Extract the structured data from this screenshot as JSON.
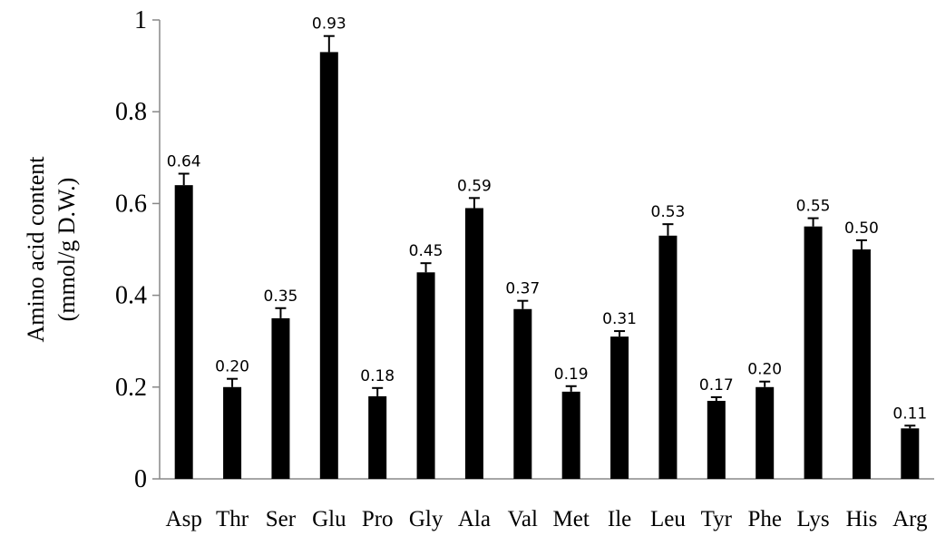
{
  "chart_data": {
    "type": "bar",
    "title": "",
    "xlabel": "",
    "ylabel_line1": "Amino acid content",
    "ylabel_line2": "(mmol/g D.W.)",
    "ylim": [
      0,
      1
    ],
    "yticks": [
      "0",
      "0.2",
      "0.4",
      "0.6",
      "0.8",
      "1"
    ],
    "grid": false,
    "legend": "none",
    "bar_color": "#000000",
    "categories": [
      "Asp",
      "Thr",
      "Ser",
      "Glu",
      "Pro",
      "Gly",
      "Ala",
      "Val",
      "Met",
      "Ile",
      "Leu",
      "Tyr",
      "Phe",
      "Lys",
      "His",
      "Arg"
    ],
    "values": [
      0.64,
      0.2,
      0.35,
      0.93,
      0.18,
      0.45,
      0.59,
      0.37,
      0.19,
      0.31,
      0.53,
      0.17,
      0.2,
      0.55,
      0.5,
      0.11
    ],
    "value_labels": [
      "0.64",
      "0.20",
      "0.35",
      "0.93",
      "0.18",
      "0.45",
      "0.59",
      "0.37",
      "0.19",
      "0.31",
      "0.53",
      "0.17",
      "0.20",
      "0.55",
      "0.50",
      "0.11"
    ],
    "error": [
      0.025,
      0.018,
      0.022,
      0.035,
      0.018,
      0.02,
      0.022,
      0.018,
      0.012,
      0.012,
      0.025,
      0.008,
      0.012,
      0.018,
      0.02,
      0.006
    ]
  }
}
